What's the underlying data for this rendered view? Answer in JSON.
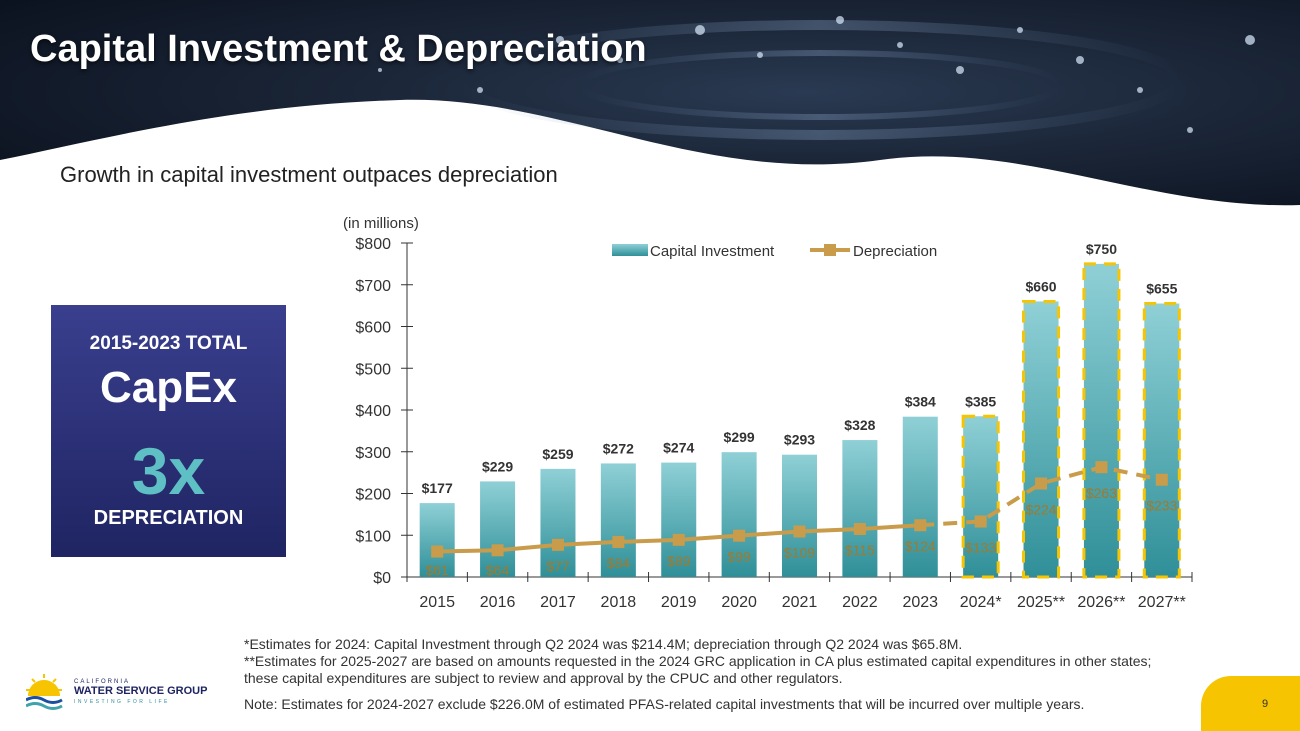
{
  "header": {
    "title": "Capital Investment & Depreciation",
    "subtitle": "Growth in capital investment outpaces depreciation"
  },
  "callout": {
    "line1": "2015-2023 TOTAL",
    "line2": "CapEx",
    "line3": "3x",
    "line4": "DEPRECIATION"
  },
  "chart_data": {
    "type": "bar",
    "unit_label": "(in millions)",
    "categories": [
      "2015",
      "2016",
      "2017",
      "2018",
      "2019",
      "2020",
      "2021",
      "2022",
      "2023",
      "2024*",
      "2025**",
      "2026**",
      "2027**"
    ],
    "series": [
      {
        "name": "Capital Investment",
        "kind": "bar",
        "values": [
          177,
          229,
          259,
          272,
          274,
          299,
          293,
          328,
          384,
          385,
          660,
          750,
          655
        ],
        "labels": [
          "$177",
          "$229",
          "$259",
          "$272",
          "$274",
          "$299",
          "$293",
          "$328",
          "$384",
          "$385",
          "$660",
          "$750",
          "$655"
        ]
      },
      {
        "name": "Depreciation",
        "kind": "line",
        "values": [
          61,
          64,
          77,
          84,
          89,
          99,
          109,
          115,
          124,
          133,
          224,
          263,
          233
        ],
        "labels": [
          "$61",
          "$64",
          "$77",
          "$84",
          "$89",
          "$99",
          "$109",
          "$115",
          "$124",
          "$133",
          "$224",
          "$263",
          "$233"
        ]
      }
    ],
    "estimated_from_index": 9,
    "y_ticks": [
      "$0",
      "$100",
      "$200",
      "$300",
      "$400",
      "$500",
      "$600",
      "$700",
      "$800"
    ],
    "ylim": [
      0,
      800
    ],
    "colors": {
      "bar": "#3fa3ab",
      "bar_light": "#8fd0d6",
      "line": "#c89c4a",
      "estimate_outline": "#f6c400"
    }
  },
  "footnotes": {
    "line1": "*Estimates for 2024: Capital Investment through Q2 2024 was $214.4M; depreciation through Q2 2024 was $65.8M.",
    "line2": "**Estimates for 2025-2027 are based on amounts requested in the 2024 GRC application in CA plus estimated capital expenditures in other states; these capital expenditures are subject to review and approval by the CPUC and other regulators.",
    "note": "Note: Estimates for 2024-2027 exclude $226.0M of estimated PFAS-related capital investments that will be incurred over multiple years."
  },
  "logo": {
    "top": "CALIFORNIA",
    "main": "WATER SERVICE GROUP",
    "tagline": "INVESTING FOR LIFE"
  },
  "page_number": "9"
}
